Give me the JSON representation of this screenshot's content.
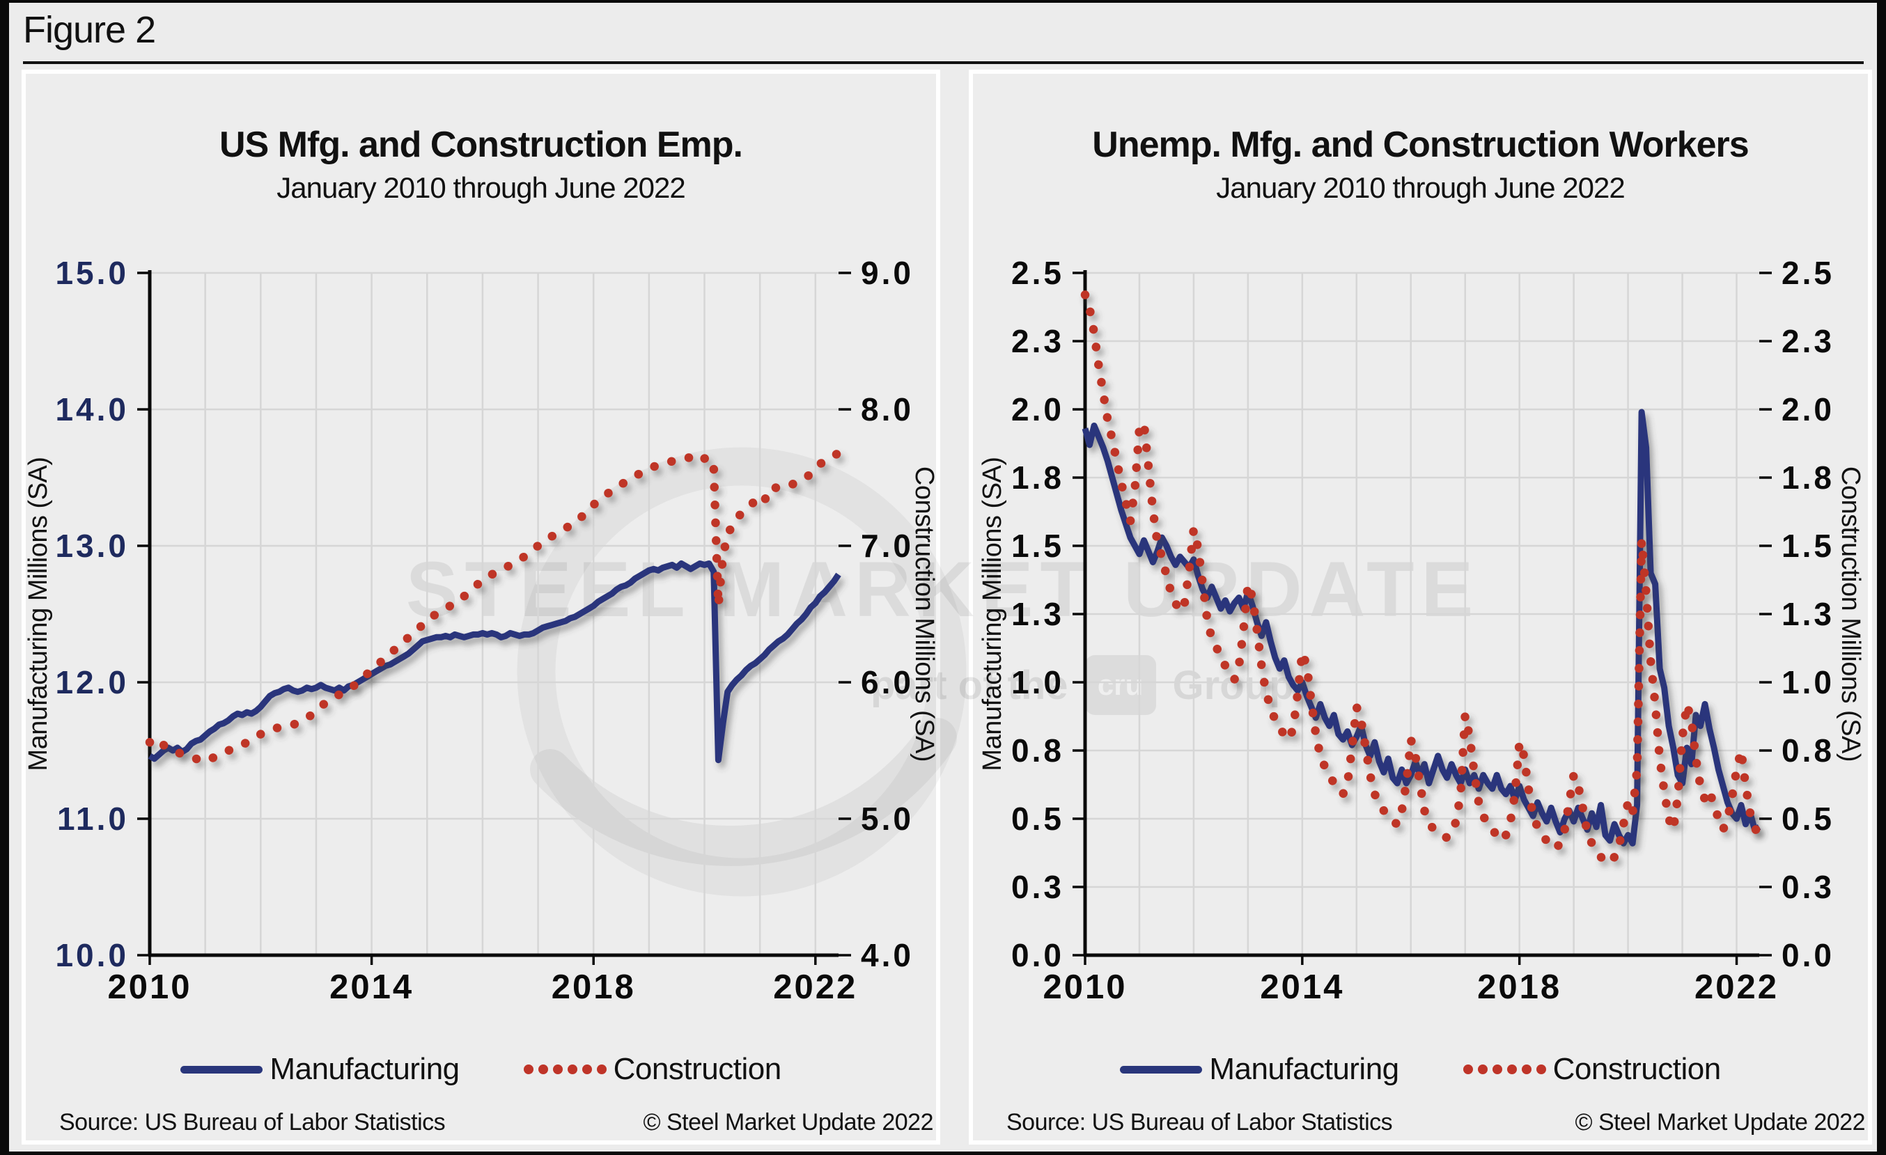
{
  "figure": {
    "label": "Figure 2"
  },
  "watermark": {
    "line1": "STEEL MARKET UPDATE",
    "line2_pre": "part of the",
    "line2_box": "cru",
    "line2_post": "Group"
  },
  "colors": {
    "manufacturing": "#29367B",
    "construction": "#BF3428",
    "left_axis_label_navy": "#1e2a5e",
    "axis_black": "#0a0a0a",
    "gridline": "#d6d6d6",
    "panel_bg": "#ededed",
    "page_bg": "#ececec"
  },
  "chart_data": [
    {
      "type": "line",
      "title": "US Mfg. and Construction Emp.",
      "subtitle": "January 2010 through June 2022",
      "x": {
        "start": "2010-01",
        "end": "2022-06",
        "unit": "monthly"
      },
      "x_tick_labels": [
        "2010",
        "2014",
        "2018",
        "2022"
      ],
      "x_tick_years": [
        2010,
        2014,
        2018,
        2022
      ],
      "y_left": {
        "label": "Manufacturing Millions (SA)",
        "min": 10,
        "max": 15,
        "tick_values": [
          10,
          11,
          12,
          13,
          14,
          15
        ],
        "tick_labels": [
          "10.0",
          "11.0",
          "12.0",
          "13.0",
          "14.0",
          "15.0"
        ]
      },
      "y_right": {
        "label": "Construction Millions (SA)",
        "min": 4,
        "max": 9,
        "tick_values": [
          4,
          5,
          6,
          7,
          8,
          9
        ],
        "tick_labels": [
          "4.0",
          "5.0",
          "6.0",
          "7.0",
          "8.0",
          "9.0"
        ]
      },
      "legend_position": "bottom",
      "source": "Source: US Bureau  of Labor Statistics",
      "copyright": "© Steel Market Update 2022",
      "series": [
        {
          "name": "Manufacturing",
          "axis": "left",
          "style": "solid",
          "color": "#29367B",
          "values": [
            11.46,
            11.44,
            11.47,
            11.5,
            11.52,
            11.5,
            11.52,
            11.49,
            11.51,
            11.55,
            11.57,
            11.58,
            11.61,
            11.64,
            11.66,
            11.69,
            11.7,
            11.72,
            11.75,
            11.77,
            11.76,
            11.78,
            11.77,
            11.79,
            11.82,
            11.86,
            11.9,
            11.92,
            11.93,
            11.95,
            11.96,
            11.94,
            11.93,
            11.94,
            11.96,
            11.95,
            11.96,
            11.98,
            11.96,
            11.95,
            11.94,
            11.96,
            11.94,
            11.97,
            11.98,
            12.0,
            12.02,
            12.04,
            12.06,
            12.08,
            12.1,
            12.12,
            12.13,
            12.15,
            12.17,
            12.19,
            12.21,
            12.24,
            12.27,
            12.3,
            12.31,
            12.32,
            12.33,
            12.33,
            12.34,
            12.33,
            12.35,
            12.34,
            12.33,
            12.34,
            12.35,
            12.35,
            12.36,
            12.35,
            12.36,
            12.35,
            12.33,
            12.34,
            12.36,
            12.35,
            12.34,
            12.35,
            12.35,
            12.36,
            12.38,
            12.4,
            12.41,
            12.42,
            12.43,
            12.44,
            12.45,
            12.47,
            12.48,
            12.5,
            12.52,
            12.54,
            12.56,
            12.59,
            12.61,
            12.63,
            12.65,
            12.68,
            12.7,
            12.71,
            12.73,
            12.76,
            12.78,
            12.8,
            12.82,
            12.83,
            12.82,
            12.84,
            12.85,
            12.86,
            12.84,
            12.87,
            12.85,
            12.83,
            12.85,
            12.87,
            12.86,
            12.87,
            12.81,
            11.43,
            11.7,
            11.93,
            11.98,
            12.02,
            12.05,
            12.09,
            12.12,
            12.14,
            12.17,
            12.2,
            12.24,
            12.27,
            12.3,
            12.32,
            12.35,
            12.39,
            12.43,
            12.46,
            12.5,
            12.55,
            12.58,
            12.63,
            12.66,
            12.7,
            12.74,
            12.79
          ]
        },
        {
          "name": "Construction",
          "axis": "right",
          "style": "dotted",
          "color": "#BF3428",
          "values": [
            5.56,
            5.53,
            5.51,
            5.54,
            5.52,
            5.5,
            5.49,
            5.47,
            5.46,
            5.45,
            5.44,
            5.43,
            5.42,
            5.44,
            5.45,
            5.47,
            5.48,
            5.5,
            5.51,
            5.53,
            5.54,
            5.56,
            5.58,
            5.6,
            5.62,
            5.64,
            5.65,
            5.66,
            5.67,
            5.67,
            5.68,
            5.69,
            5.7,
            5.72,
            5.74,
            5.76,
            5.79,
            5.82,
            5.85,
            5.87,
            5.89,
            5.91,
            5.93,
            5.95,
            5.97,
            6.0,
            6.03,
            6.06,
            6.09,
            6.12,
            6.15,
            6.18,
            6.21,
            6.24,
            6.27,
            6.3,
            6.33,
            6.36,
            6.39,
            6.42,
            6.45,
            6.48,
            6.5,
            6.52,
            6.54,
            6.56,
            6.58,
            6.61,
            6.63,
            6.66,
            6.69,
            6.72,
            6.75,
            6.77,
            6.79,
            6.81,
            6.82,
            6.84,
            6.86,
            6.88,
            6.9,
            6.92,
            6.95,
            6.98,
            7.0,
            7.03,
            7.05,
            7.07,
            7.09,
            7.11,
            7.13,
            7.15,
            7.17,
            7.2,
            7.23,
            7.26,
            7.3,
            7.33,
            7.36,
            7.38,
            7.41,
            7.43,
            7.45,
            7.47,
            7.49,
            7.51,
            7.53,
            7.55,
            7.57,
            7.58,
            7.59,
            7.6,
            7.61,
            7.62,
            7.62,
            7.63,
            7.64,
            7.65,
            7.66,
            7.67,
            7.64,
            7.65,
            7.57,
            6.56,
            6.93,
            7.08,
            7.15,
            7.2,
            7.24,
            7.27,
            7.3,
            7.33,
            7.36,
            7.33,
            7.42,
            7.43,
            7.42,
            7.43,
            7.44,
            7.45,
            7.47,
            7.48,
            7.5,
            7.53,
            7.56,
            7.6,
            7.62,
            7.64,
            7.66,
            7.68
          ]
        }
      ]
    },
    {
      "type": "line",
      "title": "Unemp. Mfg. and Construction Workers",
      "subtitle": "January 2010 through June 2022",
      "x": {
        "start": "2010-01",
        "end": "2022-06",
        "unit": "monthly"
      },
      "x_tick_labels": [
        "2010",
        "2014",
        "2018",
        "2022"
      ],
      "x_tick_years": [
        2010,
        2014,
        2018,
        2022
      ],
      "y_left": {
        "label": "Manufacturing Millions (SA)",
        "min": 0,
        "max": 2.5,
        "tick_values": [
          0,
          0.25,
          0.5,
          0.75,
          1.0,
          1.25,
          1.5,
          1.75,
          2.0,
          2.25,
          2.5
        ],
        "tick_labels": [
          "0.0",
          "0.3",
          "0.5",
          "0.8",
          "1.0",
          "1.3",
          "1.5",
          "1.8",
          "2.0",
          "2.3",
          "2.5"
        ]
      },
      "y_right": {
        "label": "Construction Millions (SA)",
        "min": 0,
        "max": 2.5,
        "tick_values": [
          0,
          0.25,
          0.5,
          0.75,
          1.0,
          1.25,
          1.5,
          1.75,
          2.0,
          2.25,
          2.5
        ],
        "tick_labels": [
          "0.0",
          "0.3",
          "0.5",
          "0.8",
          "1.0",
          "1.3",
          "1.5",
          "1.8",
          "2.0",
          "2.3",
          "2.5"
        ]
      },
      "legend_position": "bottom",
      "source": "Source: US Bureau  of Labor Statistics",
      "copyright": "© Steel Market Update 2022",
      "series": [
        {
          "name": "Manufacturing",
          "axis": "left",
          "style": "solid",
          "color": "#29367B",
          "values": [
            1.93,
            1.87,
            1.94,
            1.9,
            1.86,
            1.81,
            1.75,
            1.69,
            1.63,
            1.58,
            1.53,
            1.5,
            1.47,
            1.52,
            1.48,
            1.44,
            1.48,
            1.53,
            1.5,
            1.46,
            1.43,
            1.46,
            1.44,
            1.42,
            1.45,
            1.39,
            1.34,
            1.31,
            1.35,
            1.31,
            1.27,
            1.3,
            1.26,
            1.29,
            1.31,
            1.27,
            1.33,
            1.28,
            1.22,
            1.17,
            1.22,
            1.15,
            1.09,
            1.05,
            1.08,
            1.02,
            0.99,
            0.97,
            1.0,
            0.95,
            0.91,
            0.87,
            0.92,
            0.87,
            0.84,
            0.88,
            0.81,
            0.79,
            0.82,
            0.77,
            0.8,
            0.84,
            0.77,
            0.73,
            0.78,
            0.71,
            0.67,
            0.72,
            0.65,
            0.63,
            0.68,
            0.63,
            0.66,
            0.71,
            0.66,
            0.7,
            0.63,
            0.68,
            0.73,
            0.68,
            0.65,
            0.7,
            0.66,
            0.63,
            0.68,
            0.63,
            0.66,
            0.61,
            0.66,
            0.63,
            0.61,
            0.66,
            0.61,
            0.59,
            0.62,
            0.57,
            0.62,
            0.57,
            0.54,
            0.51,
            0.56,
            0.52,
            0.49,
            0.54,
            0.49,
            0.45,
            0.5,
            0.53,
            0.49,
            0.54,
            0.5,
            0.46,
            0.52,
            0.47,
            0.55,
            0.44,
            0.42,
            0.48,
            0.44,
            0.41,
            0.44,
            0.41,
            0.55,
            1.99,
            1.86,
            1.4,
            1.36,
            1.05,
            0.98,
            0.84,
            0.76,
            0.66,
            0.63,
            0.76,
            0.7,
            0.88,
            0.84,
            0.92,
            0.83,
            0.76,
            0.68,
            0.62,
            0.56,
            0.52,
            0.5,
            0.55,
            0.48,
            0.52,
            0.46,
            0.47
          ]
        },
        {
          "name": "Construction",
          "axis": "right",
          "style": "dotted",
          "color": "#BF3428",
          "values": [
            2.42,
            2.37,
            2.28,
            2.16,
            2.06,
            1.96,
            1.89,
            1.81,
            1.73,
            1.66,
            1.59,
            1.71,
            1.93,
            1.95,
            1.79,
            1.63,
            1.51,
            1.46,
            1.39,
            1.33,
            1.29,
            1.26,
            1.29,
            1.41,
            1.56,
            1.49,
            1.36,
            1.23,
            1.16,
            1.13,
            1.09,
            1.06,
            1.03,
            1.01,
            1.06,
            1.19,
            1.36,
            1.31,
            1.19,
            1.06,
            0.96,
            0.91,
            0.86,
            0.83,
            0.81,
            0.79,
            0.83,
            0.96,
            1.11,
            1.06,
            0.93,
            0.81,
            0.73,
            0.69,
            0.66,
            0.63,
            0.61,
            0.59,
            0.63,
            0.76,
            0.91,
            0.86,
            0.76,
            0.66,
            0.59,
            0.56,
            0.53,
            0.51,
            0.49,
            0.48,
            0.53,
            0.63,
            0.79,
            0.73,
            0.63,
            0.53,
            0.49,
            0.46,
            0.45,
            0.44,
            0.43,
            0.45,
            0.49,
            0.59,
            0.88,
            0.8,
            0.67,
            0.56,
            0.51,
            0.48,
            0.46,
            0.44,
            0.42,
            0.44,
            0.49,
            0.59,
            0.78,
            0.73,
            0.61,
            0.51,
            0.47,
            0.44,
            0.42,
            0.4,
            0.39,
            0.41,
            0.46,
            0.56,
            0.66,
            0.62,
            0.54,
            0.45,
            0.41,
            0.38,
            0.36,
            0.34,
            0.34,
            0.36,
            0.4,
            0.48,
            0.56,
            0.52,
            0.68,
            1.52,
            1.33,
            1.08,
            0.92,
            0.72,
            0.6,
            0.5,
            0.46,
            0.58,
            0.8,
            0.92,
            0.86,
            0.72,
            0.62,
            0.57,
            0.6,
            0.55,
            0.5,
            0.46,
            0.5,
            0.58,
            0.68,
            0.75,
            0.62,
            0.52,
            0.47,
            0.43
          ]
        }
      ]
    }
  ]
}
